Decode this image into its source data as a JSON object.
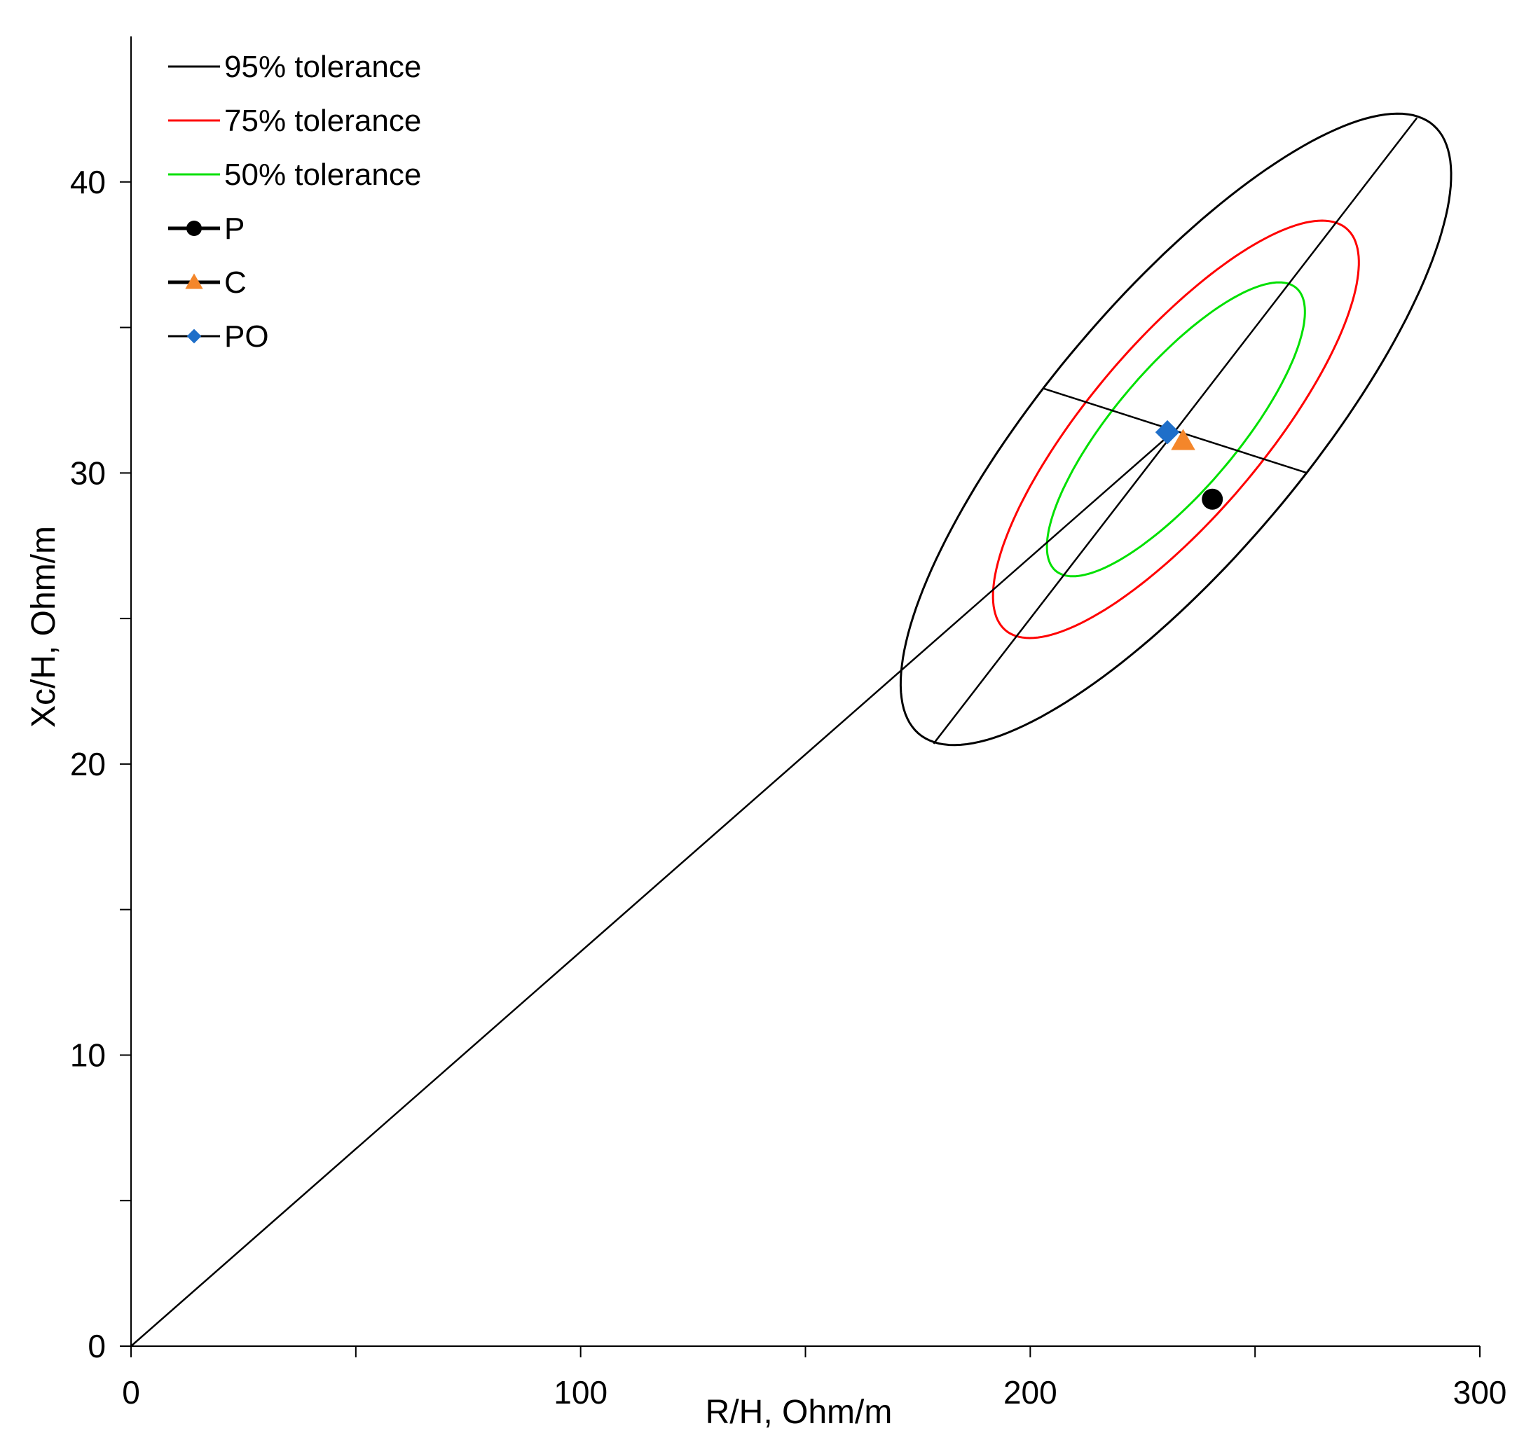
{
  "chart_data": {
    "type": "scatter",
    "title": "",
    "xlabel": "R/H, Ohm/m",
    "ylabel": "Xc/H, Ohm/m",
    "xlim": [
      0,
      300
    ],
    "ylim": [
      0,
      45
    ],
    "x_ticks": [
      0,
      100,
      200,
      300
    ],
    "x_minor_ticks": [
      50,
      150,
      250
    ],
    "y_ticks": [
      0,
      10,
      20,
      30,
      40
    ],
    "y_minor_ticks": [
      5,
      15,
      25,
      35
    ],
    "grid": false,
    "legend_position": "top-left",
    "colors": {
      "tol95": "#000000",
      "tol75": "#ff0000",
      "tol50": "#00e000",
      "P": "#000000",
      "C": "#f4862a",
      "PO": "#1f6fc9"
    },
    "ellipses": [
      {
        "name": "95% tolerance",
        "color_key": "tol95",
        "center": [
          232.4,
          31.5
        ],
        "major_end1": [
          286.0,
          42.2
        ],
        "major_end2": [
          178.5,
          20.7
        ],
        "minor_end1": [
          203.0,
          32.9
        ],
        "minor_end2": [
          261.6,
          30.0
        ]
      },
      {
        "name": "75% tolerance",
        "color_key": "tol75",
        "center": [
          232.4,
          31.5
        ],
        "major_end1": [
          268.0,
          38.6
        ],
        "major_end2": [
          196.8,
          24.4
        ],
        "minor_end1": [
          212.7,
          32.5
        ],
        "minor_end2": [
          252.1,
          30.5
        ]
      },
      {
        "name": "50% tolerance",
        "color_key": "tol50",
        "center": [
          232.4,
          31.5
        ],
        "major_end1": [
          257.5,
          36.5
        ],
        "major_end2": [
          207.3,
          26.5
        ],
        "minor_end1": [
          218.5,
          32.2
        ],
        "minor_end2": [
          246.3,
          30.8
        ]
      }
    ],
    "lines": [
      {
        "name": "origin-to-center",
        "points": [
          [
            0,
            0
          ],
          [
            232.4,
            31.5
          ]
        ]
      },
      {
        "name": "major-axis",
        "points": [
          [
            178.5,
            20.7
          ],
          [
            286.0,
            42.2
          ]
        ]
      },
      {
        "name": "minor-axis",
        "points": [
          [
            203.0,
            32.9
          ],
          [
            261.6,
            30.0
          ]
        ]
      }
    ],
    "points": [
      {
        "name": "P",
        "x": 240.5,
        "y": 29.1,
        "marker": "circle",
        "color_key": "P"
      },
      {
        "name": "C",
        "x": 234.0,
        "y": 31.1,
        "marker": "triangle",
        "color_key": "C"
      },
      {
        "name": "PO",
        "x": 230.5,
        "y": 31.4,
        "marker": "diamond",
        "color_key": "PO"
      }
    ],
    "legend": [
      {
        "label": "95% tolerance",
        "style": "line",
        "color_key": "tol95"
      },
      {
        "label": "75% tolerance",
        "style": "line",
        "color_key": "tol75"
      },
      {
        "label": "50% tolerance",
        "style": "line",
        "color_key": "tol50"
      },
      {
        "label": "P",
        "style": "circle",
        "color_key": "P"
      },
      {
        "label": "C",
        "style": "triangle",
        "color_key": "C"
      },
      {
        "label": "PO",
        "style": "diamond",
        "color_key": "PO"
      }
    ]
  }
}
